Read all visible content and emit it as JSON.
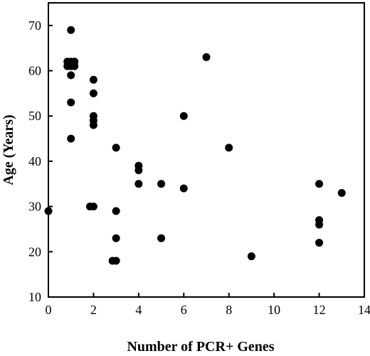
{
  "chart_data": {
    "type": "scatter",
    "title": "",
    "xlabel": "Number of PCR+ Genes",
    "ylabel": "Age (Years)",
    "xlim": [
      0,
      14
    ],
    "ylim": [
      10,
      75
    ],
    "xticks": [
      0,
      2,
      4,
      6,
      8,
      10,
      12,
      14
    ],
    "yticks": [
      10,
      20,
      30,
      40,
      50,
      60,
      70
    ],
    "grid": false,
    "legend": "none",
    "marker_color": "#000000",
    "points": [
      {
        "x": 0,
        "y": 29
      },
      {
        "x": 1,
        "y": 69
      },
      {
        "x": 1,
        "y": 62
      },
      {
        "x": 1,
        "y": 62
      },
      {
        "x": 1,
        "y": 62
      },
      {
        "x": 1,
        "y": 61
      },
      {
        "x": 1,
        "y": 61
      },
      {
        "x": 1,
        "y": 61
      },
      {
        "x": 1,
        "y": 59
      },
      {
        "x": 1,
        "y": 53
      },
      {
        "x": 1,
        "y": 45
      },
      {
        "x": 2,
        "y": 58
      },
      {
        "x": 2,
        "y": 55
      },
      {
        "x": 2,
        "y": 50
      },
      {
        "x": 2,
        "y": 49
      },
      {
        "x": 2,
        "y": 48
      },
      {
        "x": 2,
        "y": 30
      },
      {
        "x": 2,
        "y": 30
      },
      {
        "x": 3,
        "y": 43
      },
      {
        "x": 3,
        "y": 29
      },
      {
        "x": 3,
        "y": 23
      },
      {
        "x": 3,
        "y": 18
      },
      {
        "x": 3,
        "y": 18
      },
      {
        "x": 4,
        "y": 39
      },
      {
        "x": 4,
        "y": 38
      },
      {
        "x": 4,
        "y": 35
      },
      {
        "x": 5,
        "y": 35
      },
      {
        "x": 5,
        "y": 23
      },
      {
        "x": 6,
        "y": 50
      },
      {
        "x": 6,
        "y": 34
      },
      {
        "x": 7,
        "y": 63
      },
      {
        "x": 8,
        "y": 43
      },
      {
        "x": 9,
        "y": 19
      },
      {
        "x": 12,
        "y": 35
      },
      {
        "x": 12,
        "y": 27
      },
      {
        "x": 12,
        "y": 26
      },
      {
        "x": 12,
        "y": 22
      },
      {
        "x": 13,
        "y": 33
      }
    ]
  }
}
